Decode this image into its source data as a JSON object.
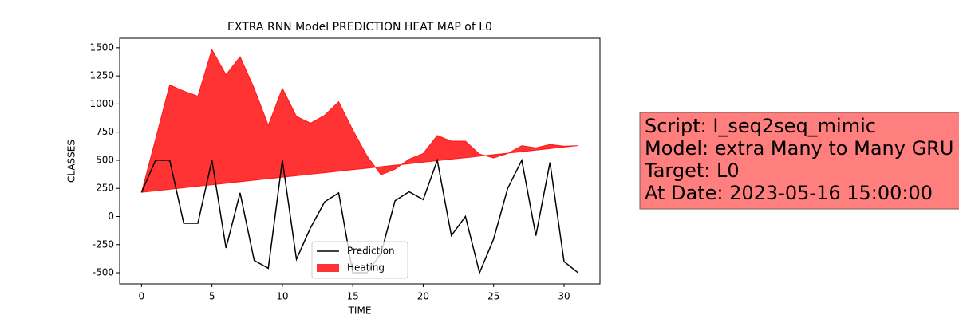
{
  "chart_data": {
    "type": "line_area",
    "title": "EXTRA RNN Model PREDICTION HEAT MAP of L0",
    "xlabel": "TIME",
    "ylabel": "CLASSES",
    "x": [
      0,
      1,
      2,
      3,
      4,
      5,
      6,
      7,
      8,
      9,
      10,
      11,
      12,
      13,
      14,
      15,
      16,
      17,
      18,
      19,
      20,
      21,
      22,
      23,
      24,
      25,
      26,
      27,
      28,
      29,
      30,
      31
    ],
    "series": [
      {
        "name": "Prediction",
        "color": "#000000",
        "kind": "line",
        "values": [
          215,
          500,
          500,
          -60,
          -60,
          500,
          -280,
          210,
          -390,
          -460,
          500,
          -380,
          -100,
          130,
          210,
          -500,
          -500,
          -330,
          140,
          220,
          150,
          500,
          -170,
          0,
          -500,
          -200,
          250,
          500,
          -170,
          480,
          -400,
          -500
        ]
      },
      {
        "name": "Heating",
        "color": "#ff0000",
        "kind": "area",
        "values": [
          215,
          690,
          1170,
          1115,
          1070,
          1485,
          1260,
          1420,
          1140,
          810,
          1140,
          890,
          830,
          900,
          1020,
          770,
          540,
          370,
          420,
          510,
          560,
          720,
          670,
          670,
          555,
          520,
          560,
          630,
          610,
          640,
          625,
          630
        ],
        "baseline": [
          215,
          228,
          242,
          255,
          269,
          282,
          295,
          309,
          322,
          336,
          349,
          362,
          376,
          389,
          402,
          416,
          429,
          443,
          456,
          469,
          483,
          496,
          510,
          523,
          536,
          550,
          563,
          576,
          590,
          603,
          617,
          630
        ]
      }
    ],
    "xlim": [
      -1.55,
      32.55
    ],
    "xticks": [
      0,
      5,
      10,
      15,
      20,
      25,
      30
    ],
    "ylim": [
      -599,
      1584
    ],
    "yticks": [
      -500,
      -250,
      0,
      250,
      500,
      750,
      1000,
      1250,
      1500
    ],
    "legend": "lower center",
    "annotation": [
      "Script: I_seq2seq_mimic",
      "Model: extra Many to Many GRU",
      "Target: L0",
      "At Date: 2023-05-16 15:00:00"
    ]
  }
}
